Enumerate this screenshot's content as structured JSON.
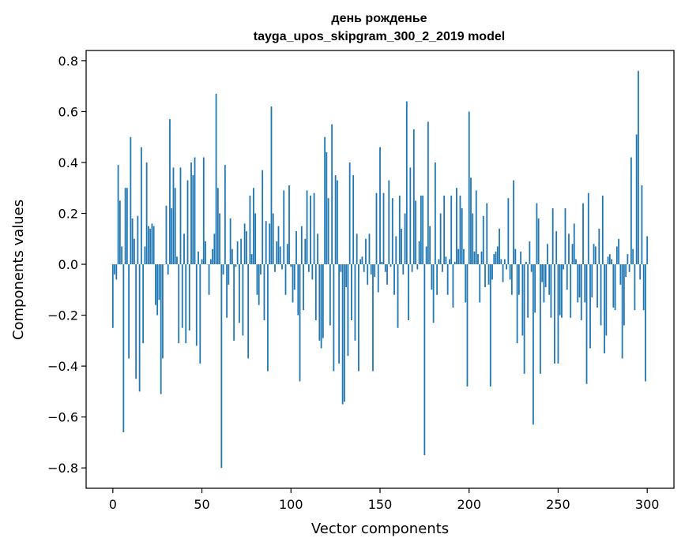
{
  "chart_data": {
    "type": "bar",
    "title": "день рожденье",
    "subtitle": "tayga_upos_skipgram_300_2_2019 model",
    "xlabel": "Vector components",
    "ylabel": "Components values",
    "xlim": [
      -15,
      315
    ],
    "ylim": [
      -0.88,
      0.84
    ],
    "xticks": [
      0,
      50,
      100,
      150,
      200,
      250,
      300
    ],
    "xtick_labels": [
      "0",
      "50",
      "100",
      "150",
      "200",
      "250",
      "300"
    ],
    "yticks": [
      -0.8,
      -0.6,
      -0.4,
      -0.2,
      0.0,
      0.2,
      0.4,
      0.6,
      0.8
    ],
    "ytick_labels": [
      "−0.8",
      "−0.6",
      "−0.4",
      "−0.2",
      "0.0",
      "0.2",
      "0.4",
      "0.6",
      "0.8"
    ],
    "grid": false,
    "bar_color": "#1f77b4",
    "x": "0..299",
    "values": [
      -0.25,
      -0.04,
      -0.06,
      0.39,
      0.25,
      0.07,
      -0.66,
      0.3,
      0.3,
      -0.37,
      0.5,
      0.18,
      0.1,
      -0.45,
      0.19,
      -0.5,
      0.46,
      -0.31,
      0.07,
      0.4,
      0.15,
      0.14,
      0.16,
      0.15,
      -0.16,
      -0.2,
      -0.14,
      -0.51,
      -0.37,
      0.0,
      0.23,
      -0.04,
      0.57,
      0.22,
      0.38,
      0.3,
      0.03,
      -0.31,
      0.38,
      -0.25,
      0.12,
      -0.31,
      0.33,
      -0.26,
      0.4,
      0.35,
      0.42,
      -0.32,
      0.05,
      -0.39,
      0.02,
      0.42,
      0.09,
      0.0,
      -0.12,
      0.02,
      0.06,
      0.12,
      0.67,
      0.3,
      0.2,
      -0.8,
      -0.04,
      0.39,
      -0.21,
      -0.08,
      0.18,
      0.06,
      -0.3,
      -0.01,
      0.09,
      -0.23,
      0.1,
      -0.28,
      0.16,
      0.13,
      -0.37,
      0.27,
      0.04,
      0.3,
      0.2,
      -0.12,
      -0.16,
      -0.04,
      0.37,
      -0.22,
      0.17,
      -0.42,
      0.16,
      0.62,
      0.2,
      -0.03,
      0.09,
      0.15,
      0.07,
      -0.02,
      0.29,
      -0.12,
      0.08,
      0.31,
      -0.01,
      -0.15,
      -0.1,
      0.13,
      -0.2,
      -0.46,
      0.15,
      -0.18,
      0.1,
      0.29,
      -0.03,
      0.27,
      -0.06,
      0.28,
      -0.22,
      0.12,
      -0.3,
      -0.33,
      -0.29,
      0.5,
      0.44,
      0.26,
      -0.24,
      0.55,
      -0.42,
      0.35,
      0.33,
      -0.39,
      -0.03,
      -0.55,
      -0.54,
      -0.09,
      -0.36,
      0.4,
      -0.22,
      0.35,
      -0.3,
      0.12,
      -0.42,
      0.02,
      0.03,
      -0.03,
      0.1,
      -0.08,
      0.12,
      -0.04,
      -0.42,
      -0.05,
      0.28,
      -0.11,
      0.46,
      0.01,
      0.28,
      -0.03,
      -0.08,
      0.33,
      -0.01,
      0.26,
      -0.12,
      0.11,
      -0.25,
      0.27,
      0.14,
      -0.04,
      0.2,
      0.64,
      -0.22,
      0.38,
      -0.03,
      0.53,
      0.25,
      -0.02,
      0.09,
      0.27,
      0.27,
      -0.75,
      0.07,
      0.56,
      0.15,
      -0.1,
      -0.23,
      0.4,
      -0.12,
      0.02,
      0.2,
      -0.03,
      0.27,
      0.03,
      -0.12,
      0.02,
      0.27,
      -0.17,
      0.01,
      0.3,
      0.06,
      0.27,
      0.22,
      0.06,
      -0.15,
      -0.48,
      0.6,
      0.34,
      0.2,
      0.05,
      0.29,
      0.04,
      -0.15,
      0.05,
      0.19,
      -0.09,
      0.24,
      -0.08,
      -0.48,
      -0.06,
      0.04,
      0.05,
      0.07,
      0.14,
      0.02,
      -0.07,
      0.02,
      -0.02,
      0.26,
      -0.06,
      -0.12,
      0.33,
      0.06,
      -0.31,
      -0.12,
      0.05,
      -0.28,
      -0.43,
      0.01,
      -0.21,
      0.09,
      -0.03,
      -0.63,
      -0.19,
      0.24,
      0.18,
      -0.43,
      -0.07,
      -0.15,
      -0.09,
      0.08,
      -0.12,
      -0.21,
      0.22,
      -0.39,
      0.13,
      -0.39,
      -0.2,
      -0.21,
      -0.02,
      0.22,
      -0.1,
      0.12,
      -0.21,
      0.08,
      0.16,
      0.02,
      -0.15,
      -0.13,
      -0.22,
      0.24,
      -0.15,
      -0.47,
      0.28,
      -0.33,
      -0.13,
      0.08,
      0.07,
      -0.17,
      0.14,
      -0.24,
      0.27,
      -0.35,
      -0.28,
      0.03,
      0.04,
      0.02,
      -0.17,
      -0.18,
      0.07,
      0.1,
      -0.08,
      -0.37,
      -0.24,
      -0.05,
      0.04,
      -0.03,
      0.42,
      0.06,
      -0.18,
      0.51,
      0.76,
      -0.06,
      0.31,
      -0.18,
      -0.46,
      0.11
    ]
  }
}
